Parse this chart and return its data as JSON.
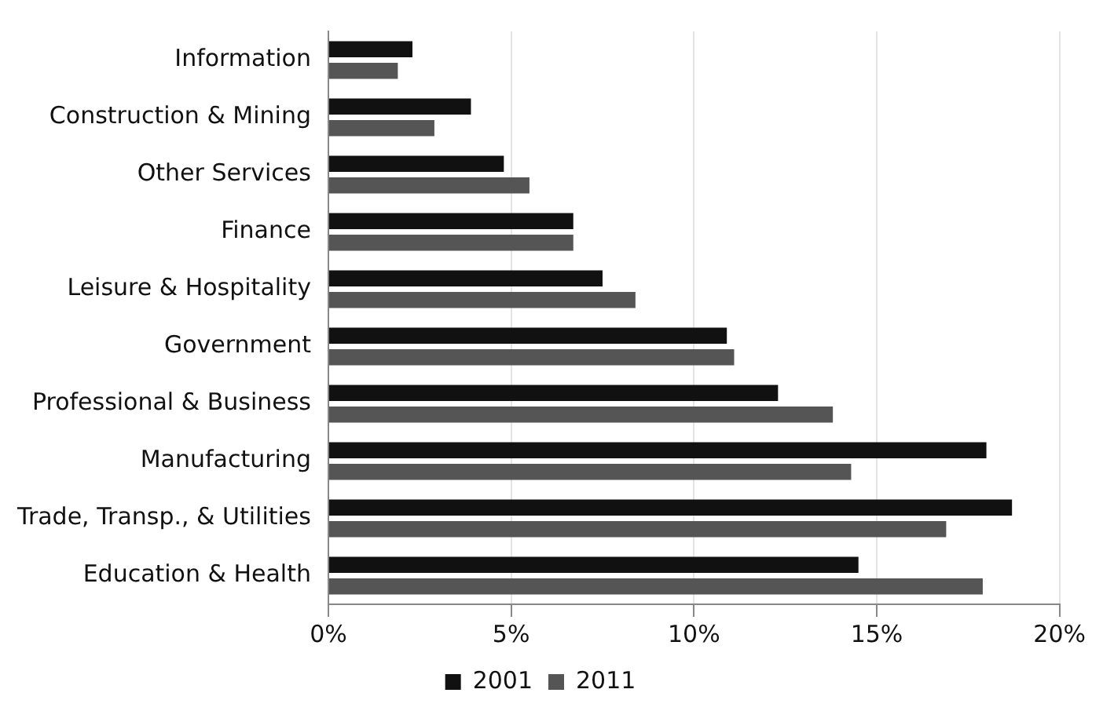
{
  "chart_data": {
    "type": "bar",
    "orientation": "horizontal",
    "categories": [
      "Information",
      "Construction & Mining",
      "Other Services",
      "Finance",
      "Leisure & Hospitality",
      "Government",
      "Professional & Business",
      "Manufacturing",
      "Trade, Transp., & Utilities",
      "Education & Health"
    ],
    "series": [
      {
        "name": "2001",
        "color": "#111111",
        "values": [
          2.3,
          3.9,
          4.8,
          6.7,
          7.5,
          10.9,
          12.3,
          18.0,
          18.7,
          14.5
        ]
      },
      {
        "name": "2011",
        "color": "#555555",
        "values": [
          1.9,
          2.9,
          5.5,
          6.7,
          8.4,
          11.1,
          13.8,
          14.3,
          16.9,
          17.9
        ]
      }
    ],
    "xlim": [
      0,
      20
    ],
    "xticks": [
      {
        "value": 0,
        "label": "0%"
      },
      {
        "value": 5,
        "label": "5%"
      },
      {
        "value": 10,
        "label": "10%"
      },
      {
        "value": 15,
        "label": "15%"
      },
      {
        "value": 20,
        "label": "20%"
      }
    ],
    "grid": "x",
    "legend": "bottom"
  }
}
